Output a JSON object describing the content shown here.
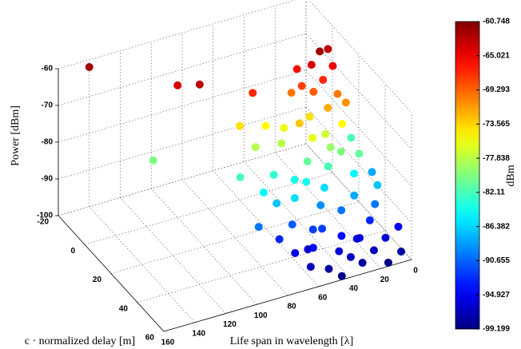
{
  "chart_data": {
    "type": "scatter3d",
    "xlabel": "Life span in wavelength [λ]",
    "ylabel": "c · normalized delay [m]",
    "zlabel": "Power [dBm]",
    "x": [
      15,
      22,
      10,
      28,
      18,
      30,
      8,
      25,
      35,
      12,
      140,
      100,
      90,
      60,
      120,
      20,
      30,
      40,
      15,
      45,
      25,
      50,
      35,
      55,
      10,
      65,
      70,
      20,
      30,
      40,
      50,
      60,
      15,
      35,
      45,
      55,
      70,
      80,
      25,
      10,
      65,
      20,
      30,
      40,
      50,
      60,
      15,
      35,
      45,
      55,
      70,
      10,
      25,
      80,
      65,
      5,
      20,
      30,
      40,
      50,
      10,
      15,
      35,
      45,
      25,
      5,
      60,
      0,
      55,
      5,
      0
    ],
    "y": [
      8,
      10,
      12,
      6,
      14,
      12,
      6,
      15,
      10,
      18,
      -20,
      0,
      5,
      10,
      5,
      20,
      18,
      22,
      25,
      16,
      24,
      20,
      26,
      14,
      22,
      18,
      12,
      30,
      32,
      28,
      30,
      26,
      34,
      35,
      33,
      36,
      30,
      24,
      28,
      32,
      34,
      40,
      42,
      38,
      44,
      40,
      46,
      48,
      45,
      50,
      42,
      44,
      50,
      38,
      48,
      40,
      55,
      58,
      52,
      56,
      52,
      60,
      55,
      60,
      48,
      58,
      54,
      50,
      46,
      20,
      30
    ],
    "z": [
      -62,
      -64,
      -65,
      -66,
      -67,
      -68,
      -63,
      -69,
      -70,
      -70,
      -62,
      -64,
      -63,
      -67,
      -80,
      -72,
      -74,
      -73,
      -75,
      -76,
      -77,
      -78,
      -76,
      -75,
      -71,
      -78,
      -74,
      -80,
      -82,
      -81,
      -84,
      -83,
      -85,
      -86,
      -84,
      -86,
      -85,
      -82,
      -79,
      -81,
      -87,
      -88,
      -90,
      -89,
      -92,
      -91,
      -93,
      -94,
      -92,
      -94,
      -93,
      -90,
      -95,
      -90,
      -95,
      -87,
      -97,
      -98,
      -96,
      -98,
      -96,
      -99,
      -97,
      -99,
      -96,
      -98,
      -97,
      -95,
      -96,
      -82,
      -88
    ],
    "xlim": [
      0,
      160
    ],
    "ylim": [
      -20,
      60
    ],
    "zlim": [
      -100,
      -60
    ],
    "xticks": [
      0,
      20,
      40,
      60,
      80,
      100,
      120,
      140,
      160
    ],
    "yticks": [
      -20,
      0,
      20,
      40,
      60
    ],
    "zticks": [
      -100,
      -90,
      -80,
      -70,
      -60
    ],
    "grid": true,
    "colormap": "jet",
    "colorbar": {
      "label": "dBm",
      "clim": [
        -99.199,
        -60.748
      ],
      "ticks": [
        -60.748,
        -65.021,
        -69.293,
        -73.565,
        -77.838,
        -82.11,
        -86.382,
        -90.655,
        -94.927,
        -99.199
      ]
    }
  }
}
